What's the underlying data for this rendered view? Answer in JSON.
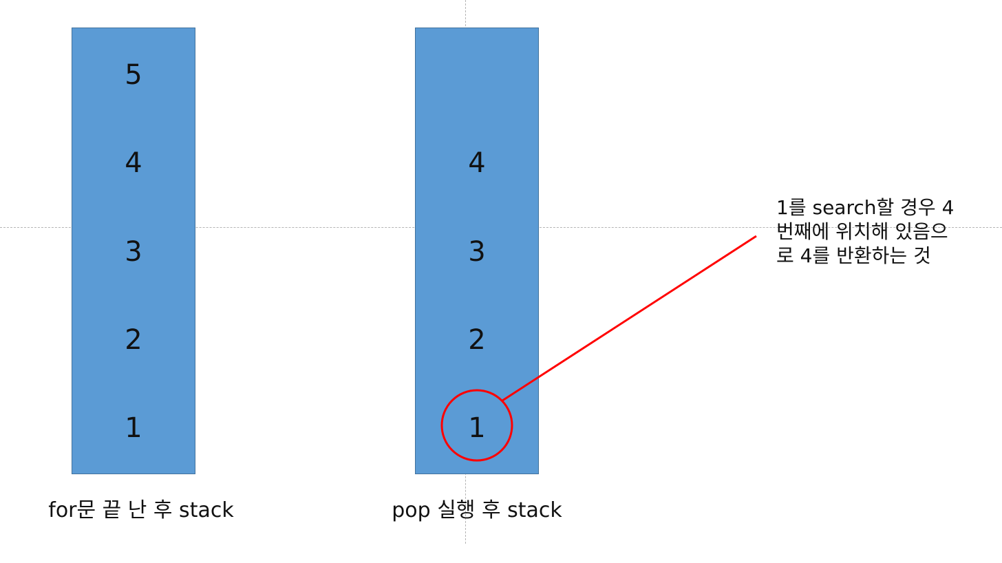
{
  "left_stack": {
    "items": [
      "5",
      "4",
      "3",
      "2",
      "1"
    ],
    "caption": "for문 끝 난 후 stack"
  },
  "right_stack": {
    "items": [
      "4",
      "3",
      "2",
      "1"
    ],
    "caption": "pop 실행 후 stack"
  },
  "annotation": {
    "text": "1를 search할 경우 4\n번째에 위치해 있음으\n로 4를 반환하는 것",
    "highlight_color": "#ff0000"
  },
  "colors": {
    "stack_fill": "#5b9bd5",
    "stack_border": "#41719c"
  }
}
